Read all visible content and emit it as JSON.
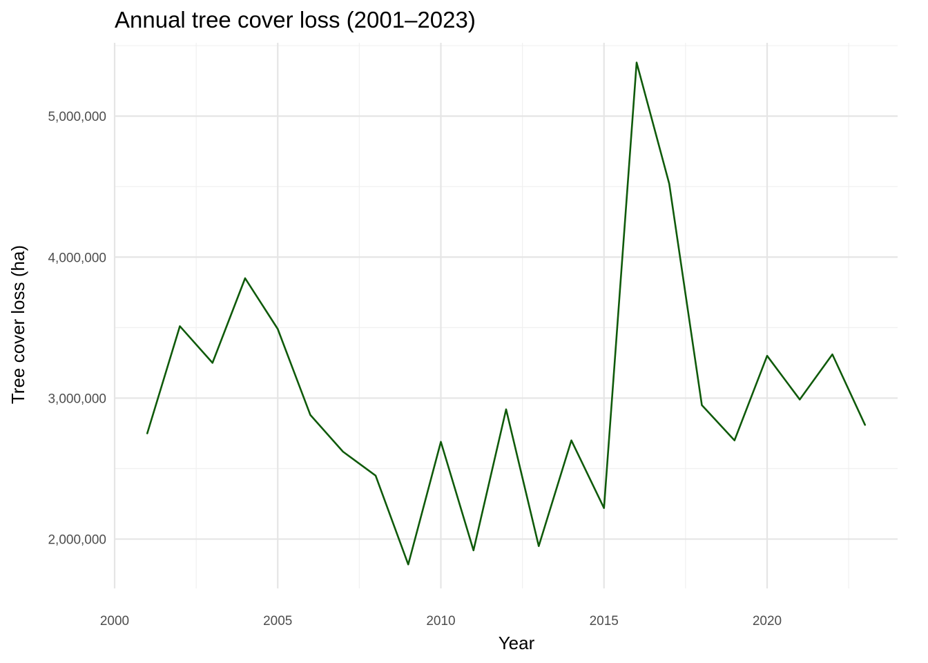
{
  "chart_data": {
    "type": "line",
    "title": "Annual tree cover loss (2001–2023)",
    "xlabel": "Year",
    "ylabel": "Tree cover loss (ha)",
    "xlim": [
      2000,
      2024
    ],
    "ylim": [
      1650000,
      5520000
    ],
    "x_ticks": [
      2000,
      2005,
      2010,
      2015,
      2020
    ],
    "x_tick_labels": [
      "2000",
      "2005",
      "2010",
      "2015",
      "2020"
    ],
    "y_ticks": [
      2000000,
      3000000,
      4000000,
      5000000
    ],
    "y_tick_labels": [
      "2,000,000",
      "3,000,000",
      "4,000,000",
      "5,000,000"
    ],
    "grid": true,
    "line_color": "#0f5a0a",
    "series": [
      {
        "x": [
          2001,
          2002,
          2003,
          2004,
          2005,
          2006,
          2007,
          2008,
          2009,
          2010,
          2011,
          2012,
          2013,
          2014,
          2015,
          2016,
          2017,
          2018,
          2019,
          2020,
          2021,
          2022,
          2023
        ],
        "values": [
          2750000,
          3510000,
          3250000,
          3850000,
          3490000,
          2880000,
          2620000,
          2450000,
          1820000,
          2690000,
          1920000,
          2920000,
          1950000,
          2700000,
          2220000,
          5380000,
          4520000,
          2950000,
          2700000,
          3300000,
          2990000,
          3310000,
          2810000
        ]
      }
    ]
  }
}
